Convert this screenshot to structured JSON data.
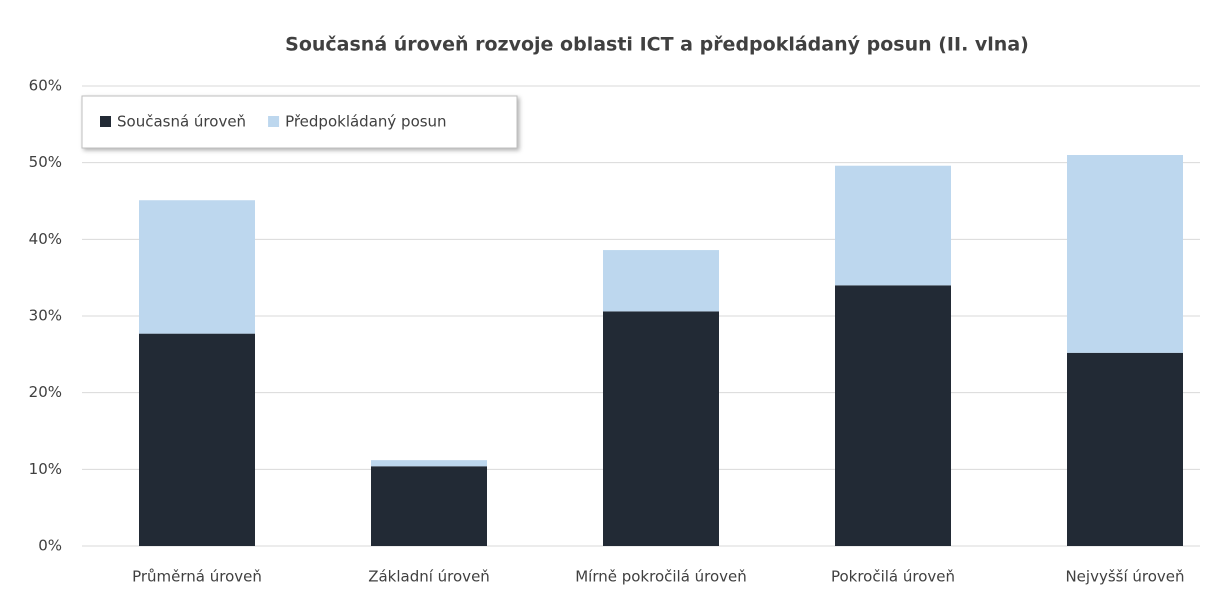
{
  "chart_data": {
    "type": "stacked_bar",
    "title": "Současná úroveň rozvoje oblasti ICT a předpokládaný posun (II. vlna)",
    "categories": [
      "Průměrná úroveň",
      "Základní úroveň",
      "Mírně pokročilá úroveň",
      "Pokročilá úroveň",
      "Nejvyšší úroveň"
    ],
    "series": [
      {
        "name": "Současná úroveň",
        "color": "#222a35",
        "values": [
          27.7,
          10.4,
          30.6,
          34.0,
          25.2
        ]
      },
      {
        "name": "Předpokládaný posun",
        "color": "#bdd7ee",
        "values": [
          17.4,
          0.8,
          8.0,
          15.6,
          25.8
        ]
      }
    ],
    "ylim": [
      0,
      60
    ],
    "yticks": [
      {
        "value": 0,
        "label": "0%"
      },
      {
        "value": 10,
        "label": "10%"
      },
      {
        "value": 20,
        "label": "20%"
      },
      {
        "value": 30,
        "label": "30%"
      },
      {
        "value": 40,
        "label": "40%"
      },
      {
        "value": 50,
        "label": "50%"
      },
      {
        "value": 60,
        "label": "60%"
      }
    ],
    "grid": true,
    "legend": "top-left"
  }
}
